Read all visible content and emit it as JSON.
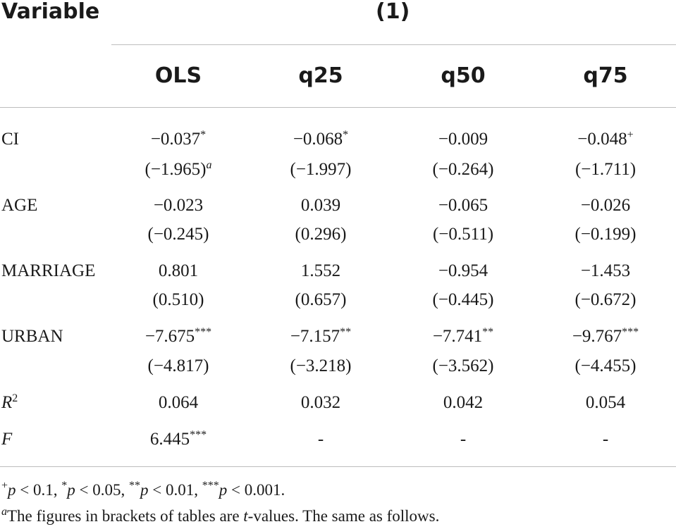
{
  "header": {
    "variable_label": "Variable",
    "group_label": "(1)",
    "columns": [
      "OLS",
      "q25",
      "q50",
      "q75"
    ]
  },
  "rows": [
    {
      "name": "CI",
      "coef": [
        "−0.037",
        "−0.068",
        "−0.009",
        "−0.048"
      ],
      "coef_sig": [
        "*",
        "*",
        "",
        "+"
      ],
      "t": [
        "(−1.965)",
        "(−1.997)",
        "(−0.264)",
        "(−1.711)"
      ],
      "t_note": [
        "a",
        "",
        "",
        ""
      ]
    },
    {
      "name": "AGE",
      "coef": [
        "−0.023",
        "0.039",
        "−0.065",
        "−0.026"
      ],
      "coef_sig": [
        "",
        "",
        "",
        ""
      ],
      "t": [
        "(−0.245)",
        "(0.296)",
        "(−0.511)",
        "(−0.199)"
      ],
      "t_note": [
        "",
        "",
        "",
        ""
      ]
    },
    {
      "name": "MARRIAGE",
      "coef": [
        "0.801",
        "1.552",
        "−0.954",
        "−1.453"
      ],
      "coef_sig": [
        "",
        "",
        "",
        ""
      ],
      "t": [
        "(0.510)",
        "(0.657)",
        "(−0.445)",
        "(−0.672)"
      ],
      "t_note": [
        "",
        "",
        "",
        ""
      ]
    },
    {
      "name": "URBAN",
      "coef": [
        "−7.675",
        "−7.157",
        "−7.741",
        "−9.767"
      ],
      "coef_sig": [
        "***",
        "**",
        "**",
        "***"
      ],
      "t": [
        "(−4.817)",
        "(−3.218)",
        "(−3.562)",
        "(−4.455)"
      ],
      "t_note": [
        "",
        "",
        "",
        ""
      ]
    }
  ],
  "stats": {
    "r2_label": "R",
    "r2_exp": "2",
    "r2_values": [
      "0.064",
      "0.032",
      "0.042",
      "0.054"
    ],
    "f_label": "F",
    "f_values": [
      "6.445",
      "-",
      "-",
      "-"
    ],
    "f_sig": [
      "***",
      "",
      "",
      ""
    ]
  },
  "footnotes": {
    "sig_line": {
      "s1_mark": "+",
      "s1_var": "p",
      "s1_rest": " < 0.1, ",
      "s2_mark": "*",
      "s2_var": "p",
      "s2_rest": " < 0.05, ",
      "s3_mark": "**",
      "s3_var": "p",
      "s3_rest": " < 0.01, ",
      "s4_mark": "***",
      "s4_var": "p",
      "s4_rest": " < 0.001."
    },
    "note_line": {
      "mark": "a",
      "pre": "The figures in brackets of tables are ",
      "var": "t",
      "post": "-values. The same as follows."
    }
  }
}
